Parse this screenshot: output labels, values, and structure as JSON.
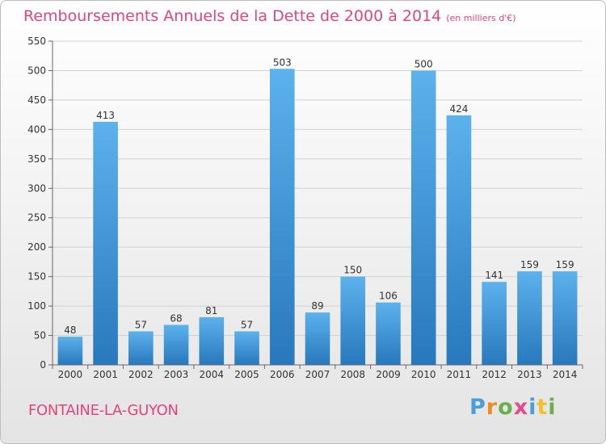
{
  "title": "Remboursements Annuels de la Dette de 2000 à 2014",
  "unit": "(en milliers d'€)",
  "footer": {
    "commune": "FONTAINE-LA-GUYON",
    "logo": "Proxiti"
  },
  "colors": {
    "title": "#e0457b",
    "bar_light": "#5aaee8",
    "bar_dark": "#2a7fc0",
    "grid": "#cfcfcf"
  },
  "chart_data": {
    "type": "bar",
    "title": "Remboursements Annuels de la Dette de 2000 à 2014",
    "categories": [
      "2000",
      "2001",
      "2002",
      "2003",
      "2004",
      "2005",
      "2006",
      "2007",
      "2008",
      "2009",
      "2010",
      "2011",
      "2012",
      "2013",
      "2014"
    ],
    "values": [
      48,
      413,
      57,
      68,
      81,
      57,
      503,
      89,
      150,
      106,
      500,
      424,
      141,
      159,
      159
    ],
    "ylim": [
      0,
      550
    ],
    "yticks": [
      0,
      50,
      100,
      150,
      200,
      250,
      300,
      350,
      400,
      450,
      500,
      550
    ],
    "grid": true,
    "xlabel": "",
    "ylabel": ""
  }
}
